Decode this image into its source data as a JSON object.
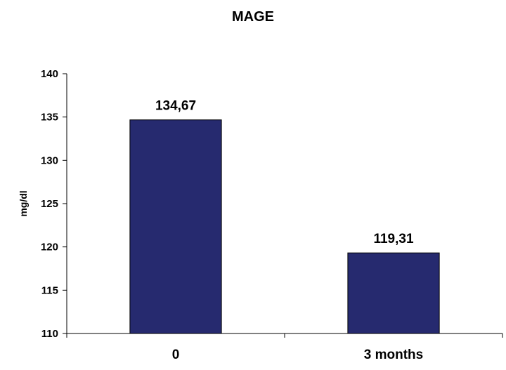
{
  "chart_data": {
    "type": "bar",
    "title": "MAGE",
    "xlabel": "",
    "ylabel": "mg/dl",
    "categories": [
      "0",
      "3 months"
    ],
    "values": [
      134.67,
      119.31
    ],
    "data_labels": [
      "134,67",
      "119,31"
    ],
    "y_ticks": [
      "110",
      "115",
      "120",
      "125",
      "130",
      "135",
      "140"
    ],
    "ylim": [
      110,
      140
    ],
    "ytick_step": 5,
    "grid": false,
    "legend": "none",
    "colors": {
      "bar": "#262a6f",
      "bar_edge": "#000000",
      "axis": "#000000"
    }
  }
}
